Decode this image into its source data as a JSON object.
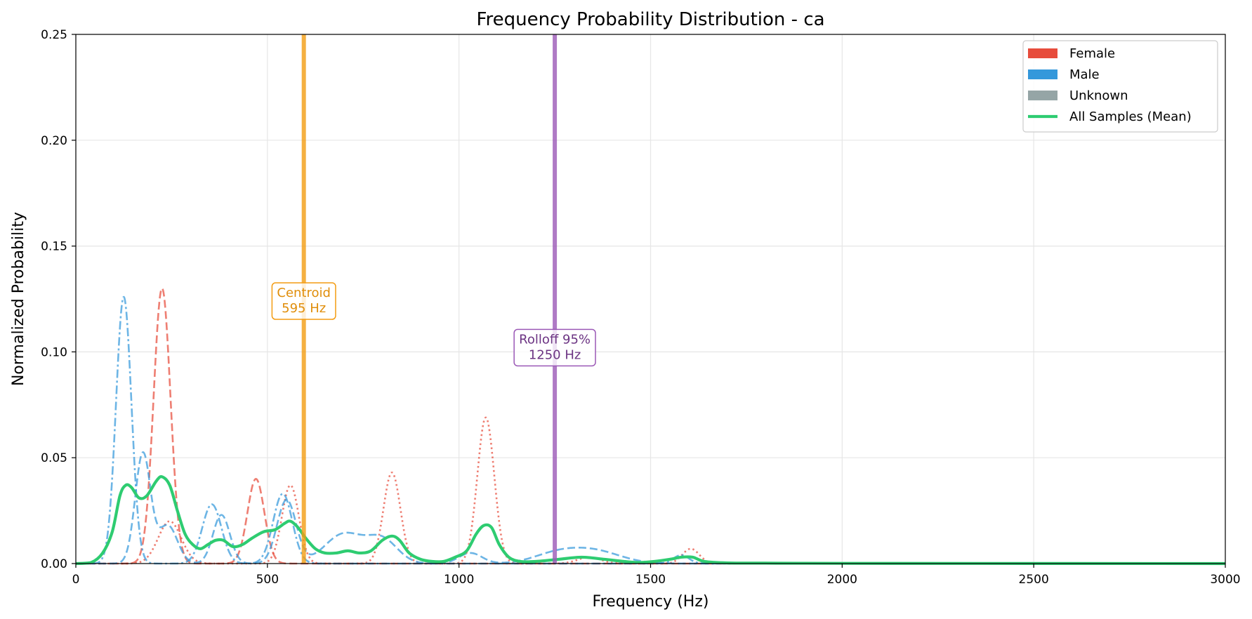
{
  "chart_data": {
    "type": "line",
    "title": "Frequency Probability Distribution - ca",
    "xlabel": "Frequency (Hz)",
    "ylabel": "Normalized Probability",
    "xlim": [
      0,
      3000
    ],
    "ylim": [
      0,
      0.25
    ],
    "x_ticks": [
      0,
      500,
      1000,
      1500,
      2000,
      2500,
      3000
    ],
    "y_ticks": [
      0.0,
      0.05,
      0.1,
      0.15,
      0.2,
      0.25
    ],
    "x_tick_labels": [
      "0",
      "500",
      "1000",
      "1500",
      "2000",
      "2500",
      "3000"
    ],
    "y_tick_labels": [
      "0.00",
      "0.05",
      "0.10",
      "0.15",
      "0.20",
      "0.25"
    ],
    "grid": true,
    "legend_position": "top-right",
    "legend": [
      {
        "label": "Female",
        "kind": "patch",
        "color": "#e74c3c"
      },
      {
        "label": "Male",
        "kind": "patch",
        "color": "#3498db"
      },
      {
        "label": "Unknown",
        "kind": "patch",
        "color": "#95a5a6"
      },
      {
        "label": "All Samples (Mean)",
        "kind": "line",
        "color": "#2ecc71"
      }
    ],
    "vlines": [
      {
        "x": 595,
        "color": "#f39c12",
        "text_line1": "Centroid",
        "text_line2": "595 Hz",
        "text_color": "#e08e0b",
        "label_y": 0.125
      },
      {
        "x": 1250,
        "color": "#9b59b6",
        "text_line1": "Rolloff 95%",
        "text_line2": "1250 Hz",
        "text_color": "#6c3483",
        "label_y": 0.103
      }
    ],
    "series": [
      {
        "group": "female",
        "color": "#e74c3c",
        "dash": "dashed",
        "peaks": [
          [
            225,
            0.13,
            22
          ],
          [
            470,
            0.04,
            22
          ]
        ]
      },
      {
        "group": "female",
        "color": "#e74c3c",
        "dash": "dotted",
        "peaks": [
          [
            245,
            0.02,
            30
          ],
          [
            560,
            0.037,
            22
          ],
          [
            825,
            0.043,
            22
          ],
          [
            1070,
            0.069,
            22
          ],
          [
            1340,
            0.003,
            30
          ],
          [
            1605,
            0.007,
            22
          ]
        ]
      },
      {
        "group": "male",
        "color": "#3498db",
        "dash": "dashdot",
        "peaks": [
          [
            125,
            0.126,
            20
          ],
          [
            355,
            0.028,
            25
          ],
          [
            540,
            0.033,
            25
          ],
          [
            1580,
            0.004,
            20
          ]
        ]
      },
      {
        "group": "male",
        "color": "#3498db",
        "dash": "dashed",
        "peaks": [
          [
            175,
            0.052,
            20
          ],
          [
            240,
            0.018,
            25
          ],
          [
            380,
            0.023,
            22
          ],
          [
            550,
            0.03,
            25
          ],
          [
            700,
            0.014,
            50
          ],
          [
            800,
            0.011,
            40
          ],
          [
            1030,
            0.005,
            30
          ],
          [
            1350,
            0.006,
            70
          ],
          [
            1250,
            0.004,
            60
          ]
        ]
      },
      {
        "group": "mean",
        "color": "#2ecc71",
        "dash": "solid",
        "points": [
          [
            0,
            0
          ],
          [
            40,
            0.0005
          ],
          [
            70,
            0.005
          ],
          [
            95,
            0.015
          ],
          [
            115,
            0.032
          ],
          [
            130,
            0.037
          ],
          [
            145,
            0.036
          ],
          [
            165,
            0.031
          ],
          [
            185,
            0.032
          ],
          [
            210,
            0.039
          ],
          [
            225,
            0.041
          ],
          [
            245,
            0.037
          ],
          [
            265,
            0.025
          ],
          [
            285,
            0.014
          ],
          [
            305,
            0.009
          ],
          [
            325,
            0.007
          ],
          [
            345,
            0.009
          ],
          [
            365,
            0.011
          ],
          [
            385,
            0.011
          ],
          [
            410,
            0.008
          ],
          [
            435,
            0.009
          ],
          [
            460,
            0.012
          ],
          [
            490,
            0.015
          ],
          [
            520,
            0.016
          ],
          [
            545,
            0.019
          ],
          [
            560,
            0.02
          ],
          [
            580,
            0.017
          ],
          [
            600,
            0.012
          ],
          [
            625,
            0.007
          ],
          [
            650,
            0.005
          ],
          [
            680,
            0.005
          ],
          [
            710,
            0.006
          ],
          [
            740,
            0.005
          ],
          [
            770,
            0.006
          ],
          [
            800,
            0.011
          ],
          [
            825,
            0.013
          ],
          [
            845,
            0.011
          ],
          [
            870,
            0.005
          ],
          [
            900,
            0.002
          ],
          [
            930,
            0.001
          ],
          [
            960,
            0.001
          ],
          [
            990,
            0.003
          ],
          [
            1020,
            0.006
          ],
          [
            1045,
            0.014
          ],
          [
            1065,
            0.018
          ],
          [
            1085,
            0.017
          ],
          [
            1105,
            0.009
          ],
          [
            1130,
            0.003
          ],
          [
            1160,
            0.001
          ],
          [
            1200,
            0.001
          ],
          [
            1260,
            0.002
          ],
          [
            1320,
            0.003
          ],
          [
            1380,
            0.002
          ],
          [
            1430,
            0.001
          ],
          [
            1470,
            0.0005
          ],
          [
            1510,
            0.001
          ],
          [
            1550,
            0.002
          ],
          [
            1580,
            0.003
          ],
          [
            1610,
            0.003
          ],
          [
            1640,
            0.001
          ],
          [
            1700,
            0.0003
          ],
          [
            1800,
            0.0002
          ],
          [
            2000,
            0.0001
          ],
          [
            3000,
            0
          ]
        ]
      }
    ]
  }
}
